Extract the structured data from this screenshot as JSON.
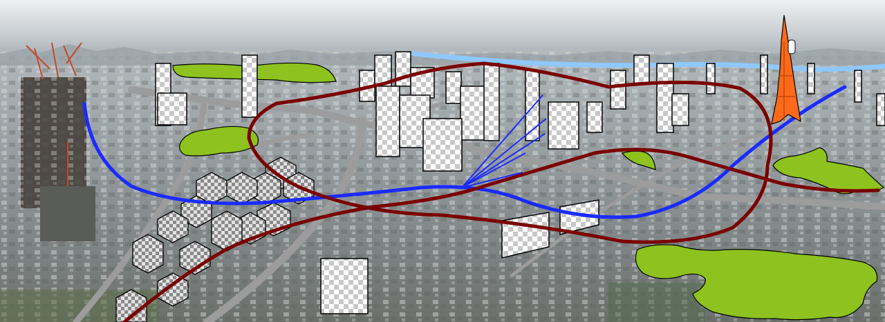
{
  "scene": {
    "kind": "annotated-city-panorama",
    "colors": {
      "sky_top": "#e9ecee",
      "sky_bottom": "#b9c0c6",
      "city_far": "#a9b1b5",
      "city_mid": "#8e9496",
      "city_near": "#737875",
      "park": "#8dc21f",
      "road": "#9a9a9a",
      "river": "#8ec8ff",
      "train_line": "#1a2bff",
      "loop_line": "#7a0000",
      "tower": "#ff6a1a",
      "building_outline": "#000000"
    },
    "icons": [
      "tower-icon",
      "checker-building-icon",
      "hexagon-block-icon",
      "park-blob-icon"
    ]
  }
}
